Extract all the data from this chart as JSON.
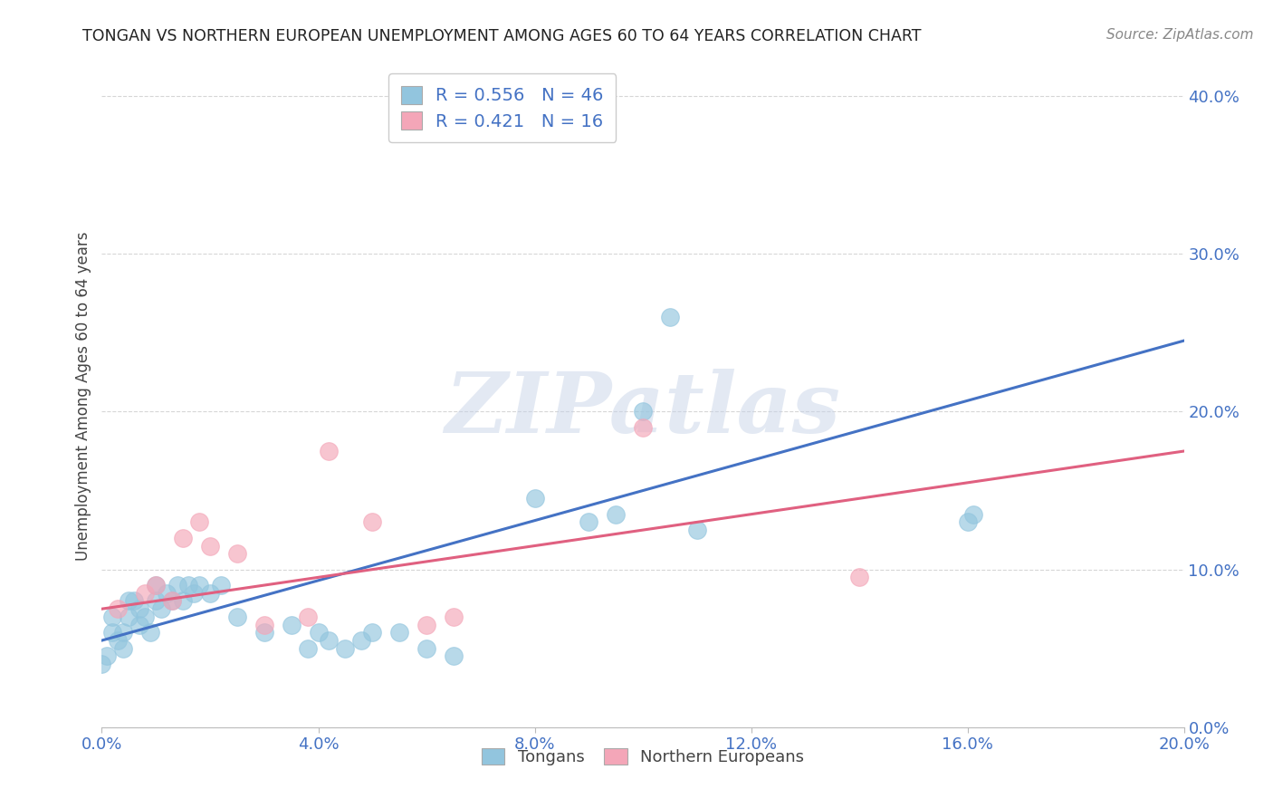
{
  "title": "TONGAN VS NORTHERN EUROPEAN UNEMPLOYMENT AMONG AGES 60 TO 64 YEARS CORRELATION CHART",
  "source": "Source: ZipAtlas.com",
  "xlabel_label": "Tongans",
  "xlabel2_label": "Northern Europeans",
  "ylabel": "Unemployment Among Ages 60 to 64 years",
  "xlim": [
    0.0,
    0.2
  ],
  "ylim": [
    0.0,
    0.42
  ],
  "xticks": [
    0.0,
    0.04,
    0.08,
    0.12,
    0.16,
    0.2
  ],
  "yticks": [
    0.0,
    0.1,
    0.2,
    0.3,
    0.4
  ],
  "blue_color": "#92c5de",
  "pink_color": "#f4a6b8",
  "blue_line_color": "#4472c4",
  "pink_line_color": "#e06080",
  "legend_text_color": "#4472c4",
  "blue_R": 0.556,
  "blue_N": 46,
  "pink_R": 0.421,
  "pink_N": 16,
  "blue_trend_x0": 0.0,
  "blue_trend_y0": 0.055,
  "blue_trend_x1": 0.2,
  "blue_trend_y1": 0.245,
  "pink_trend_x0": 0.0,
  "pink_trend_y0": 0.075,
  "pink_trend_x1": 0.2,
  "pink_trend_y1": 0.175,
  "blue_points_x": [
    0.0,
    0.001,
    0.002,
    0.002,
    0.003,
    0.004,
    0.004,
    0.005,
    0.005,
    0.006,
    0.007,
    0.007,
    0.008,
    0.009,
    0.01,
    0.01,
    0.011,
    0.012,
    0.013,
    0.014,
    0.015,
    0.016,
    0.017,
    0.018,
    0.02,
    0.022,
    0.025,
    0.03,
    0.035,
    0.038,
    0.04,
    0.042,
    0.045,
    0.048,
    0.05,
    0.055,
    0.06,
    0.065,
    0.08,
    0.09,
    0.095,
    0.1,
    0.105,
    0.11,
    0.16,
    0.161
  ],
  "blue_points_y": [
    0.04,
    0.045,
    0.06,
    0.07,
    0.055,
    0.05,
    0.06,
    0.07,
    0.08,
    0.08,
    0.065,
    0.075,
    0.07,
    0.06,
    0.08,
    0.09,
    0.075,
    0.085,
    0.08,
    0.09,
    0.08,
    0.09,
    0.085,
    0.09,
    0.085,
    0.09,
    0.07,
    0.06,
    0.065,
    0.05,
    0.06,
    0.055,
    0.05,
    0.055,
    0.06,
    0.06,
    0.05,
    0.045,
    0.145,
    0.13,
    0.135,
    0.2,
    0.26,
    0.125,
    0.13,
    0.135
  ],
  "pink_points_x": [
    0.003,
    0.008,
    0.01,
    0.013,
    0.015,
    0.018,
    0.02,
    0.025,
    0.03,
    0.038,
    0.042,
    0.05,
    0.06,
    0.065,
    0.1,
    0.14
  ],
  "pink_points_y": [
    0.075,
    0.085,
    0.09,
    0.08,
    0.12,
    0.13,
    0.115,
    0.11,
    0.065,
    0.07,
    0.175,
    0.13,
    0.065,
    0.07,
    0.19,
    0.095
  ],
  "watermark": "ZIPatlas",
  "background_color": "#ffffff"
}
